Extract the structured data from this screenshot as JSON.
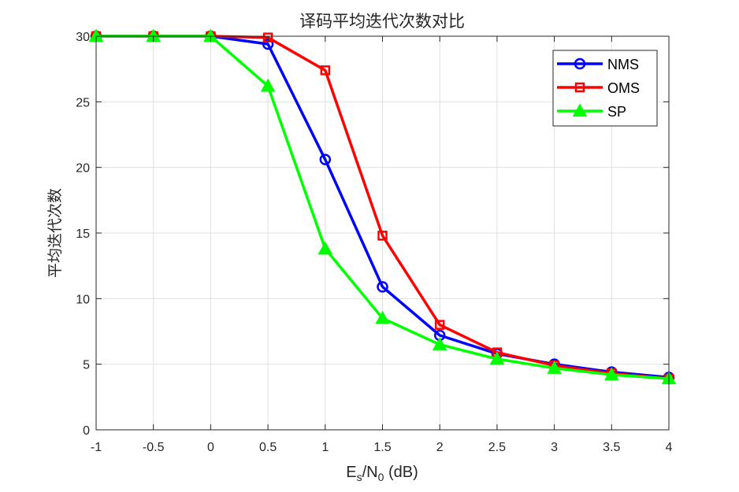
{
  "chart_data": {
    "type": "line",
    "title": "译码平均迭代次数对比",
    "xlabel": {
      "base": "E",
      "sub1": "s",
      "mid": "/N",
      "sub2": "0",
      "tail": " (dB)"
    },
    "ylabel": "平均迭代次数",
    "x": [
      -1,
      -0.5,
      0,
      0.5,
      1,
      1.5,
      2,
      2.5,
      3,
      3.5,
      4
    ],
    "xlim": [
      -1,
      4
    ],
    "ylim": [
      0,
      30
    ],
    "xticks": [
      -1,
      -0.5,
      0,
      0.5,
      1,
      1.5,
      2,
      2.5,
      3,
      3.5,
      4
    ],
    "xtick_labels": [
      "-1",
      "-0.5",
      "0",
      "0.5",
      "1",
      "1.5",
      "2",
      "2.5",
      "3",
      "3.5",
      "4"
    ],
    "yticks": [
      0,
      5,
      10,
      15,
      20,
      25,
      30
    ],
    "ytick_labels": [
      "0",
      "5",
      "10",
      "15",
      "20",
      "25",
      "30"
    ],
    "grid": true,
    "legend_position": "top-right",
    "series": [
      {
        "name": "NMS",
        "color": "#0000ff",
        "marker": "circle",
        "values": [
          30,
          30,
          30,
          29.4,
          20.6,
          10.9,
          7.2,
          5.8,
          5.0,
          4.4,
          4.0
        ]
      },
      {
        "name": "OMS",
        "color": "#ff0000",
        "marker": "square",
        "values": [
          30,
          30,
          30,
          29.9,
          27.4,
          14.8,
          8.0,
          5.9,
          4.9,
          4.3,
          3.9
        ]
      },
      {
        "name": "SP",
        "color": "#00ff00",
        "marker": "triangle",
        "values": [
          30,
          30,
          30,
          26.2,
          13.8,
          8.5,
          6.5,
          5.4,
          4.7,
          4.2,
          3.9
        ]
      }
    ]
  }
}
